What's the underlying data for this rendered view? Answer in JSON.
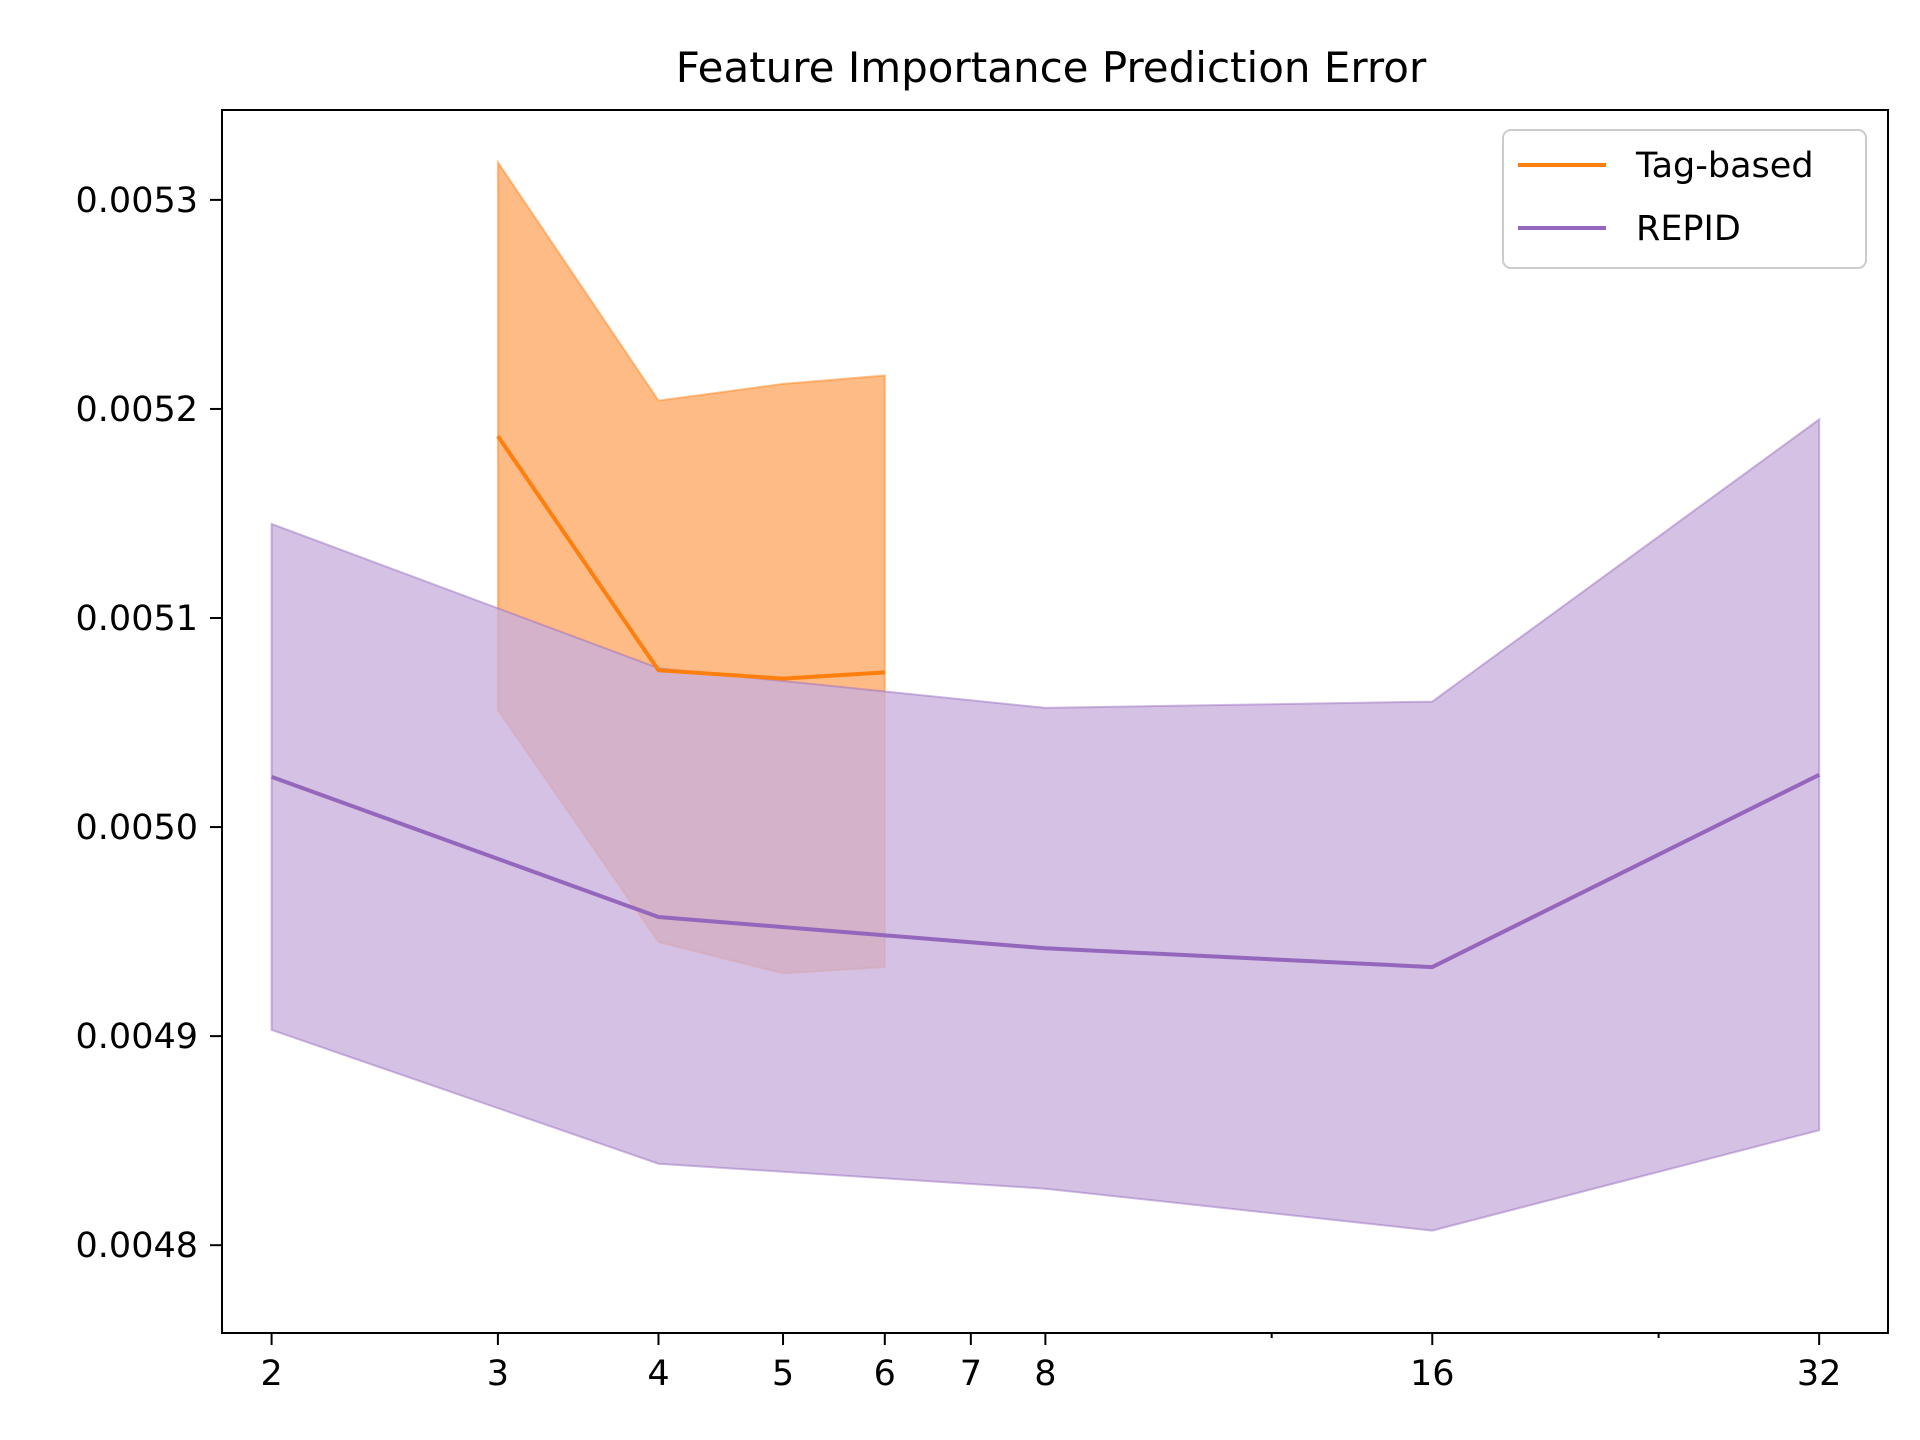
{
  "chart_data": {
    "type": "line",
    "title": "Feature Importance Prediction Error",
    "xlabel": "",
    "ylabel": "",
    "xscale": "log2",
    "xlim": [
      1.83,
      36.2
    ],
    "ylim": [
      0.004758,
      0.005343
    ],
    "x_ticks": [
      2,
      3,
      4,
      5,
      6,
      7,
      8,
      16,
      32
    ],
    "x_tick_labels": [
      "2",
      "3",
      "4",
      "5",
      "6",
      "7",
      "8",
      "16",
      "32"
    ],
    "y_ticks": [
      0.0048,
      0.0049,
      0.005,
      0.0051,
      0.0052,
      0.0053
    ],
    "y_tick_labels": [
      "0.0048",
      "0.0049",
      "0.0050",
      "0.0051",
      "0.0052",
      "0.0053"
    ],
    "grid": false,
    "legend_position": "top-right",
    "series": [
      {
        "name": "Tag-based",
        "color": "#ff7f0e",
        "fill_color": "#ffbb85",
        "x": [
          3,
          4,
          5,
          6
        ],
        "values": [
          0.005187,
          0.005075,
          0.005071,
          0.005074
        ],
        "lower": [
          0.005056,
          0.004945,
          0.00493,
          0.004933
        ],
        "upper": [
          0.005318,
          0.005204,
          0.005212,
          0.005216
        ]
      },
      {
        "name": "REPID",
        "color": "#9467bd",
        "fill_color": "#c8b0dd",
        "x": [
          2,
          4,
          8,
          16,
          32
        ],
        "values": [
          0.005024,
          0.004957,
          0.004942,
          0.004933,
          0.005025
        ],
        "lower": [
          0.004903,
          0.004839,
          0.004827,
          0.004807,
          0.004855
        ],
        "upper": [
          0.005145,
          0.005076,
          0.005057,
          0.00506,
          0.005195
        ]
      }
    ]
  }
}
